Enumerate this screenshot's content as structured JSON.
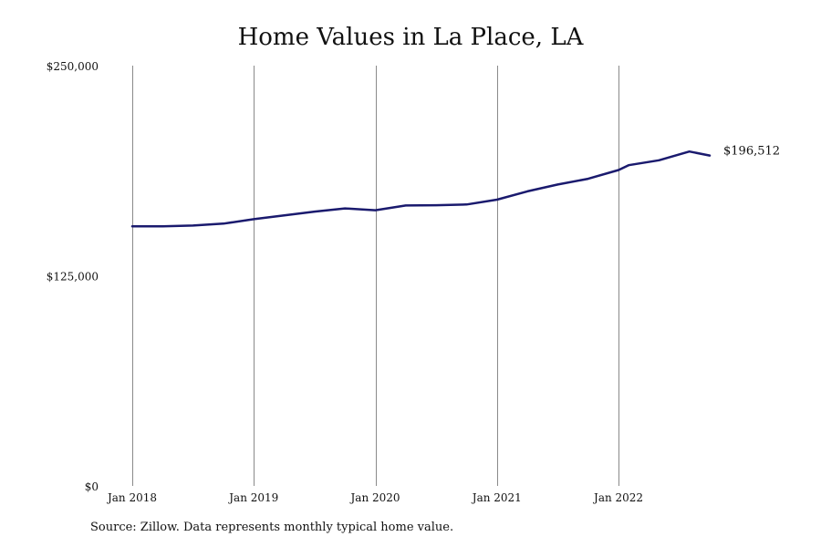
{
  "chart_data": {
    "type": "line",
    "title": "Home Values in La Place, LA",
    "xlabel": "",
    "ylabel": "",
    "ylim": [
      0,
      250000
    ],
    "y_ticks": [
      "$0",
      "$125,000",
      "$250,000"
    ],
    "y_tick_values": [
      0,
      125000,
      250000
    ],
    "x_ticks": [
      "Jan 2018",
      "Jan 2019",
      "Jan 2020",
      "Jan 2021",
      "Jan 2022"
    ],
    "x_tick_values": [
      2018.0,
      2019.0,
      2020.0,
      2021.0,
      2022.0
    ],
    "xlim": [
      2018.0,
      2022.75
    ],
    "grid": "vertical",
    "line_color": "#1a1a6e",
    "last_value_label": "$196,512",
    "series": [
      {
        "x": [
          2018.0,
          2018.25,
          2018.5,
          2018.75,
          2019.0,
          2019.25,
          2019.5,
          2019.75,
          2020.0,
          2020.25,
          2020.5,
          2020.75,
          2021.0,
          2021.25,
          2021.5,
          2021.75,
          2022.0,
          2022.083,
          2022.333,
          2022.583,
          2022.75
        ],
        "values": [
          154400,
          154400,
          154900,
          156000,
          158700,
          160900,
          163200,
          165100,
          164000,
          166800,
          167000,
          167400,
          170300,
          175200,
          179300,
          182700,
          187900,
          190800,
          193700,
          198900,
          196512
        ]
      }
    ]
  },
  "source_note": "Source: Zillow. Data represents monthly typical home value."
}
